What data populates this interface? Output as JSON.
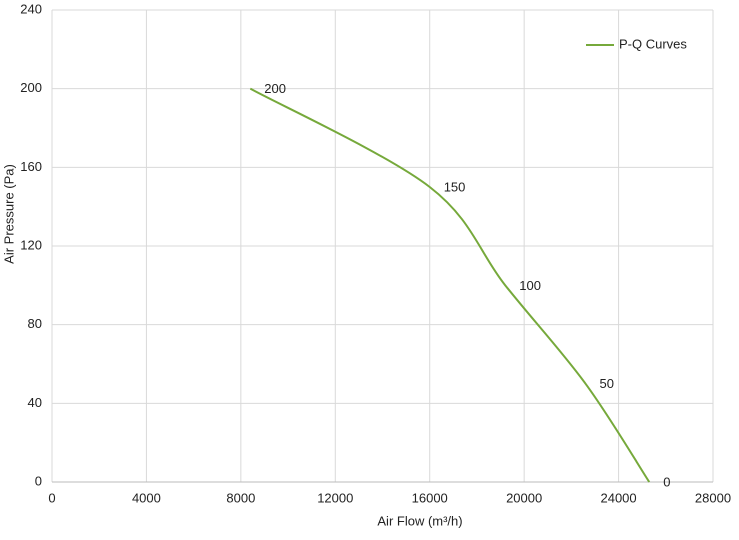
{
  "chart_data": {
    "type": "line",
    "x_label": "Air Flow  (m³/h)",
    "y_label": "Air Pressure  (Pa)",
    "x": [
      8400,
      16000,
      19200,
      22600,
      25300
    ],
    "series": [
      {
        "name": "P-Q Curves",
        "color": "#76a93b",
        "values": [
          200,
          150,
          100,
          50,
          0
        ]
      }
    ],
    "xlim": [
      0,
      28000
    ],
    "xticks": [
      0,
      4000,
      8000,
      12000,
      16000,
      20000,
      24000,
      28000
    ],
    "ylim": [
      0,
      240
    ],
    "yticks": [
      0,
      40,
      80,
      120,
      160,
      200,
      240
    ],
    "grid": true,
    "legend": "top-right"
  }
}
